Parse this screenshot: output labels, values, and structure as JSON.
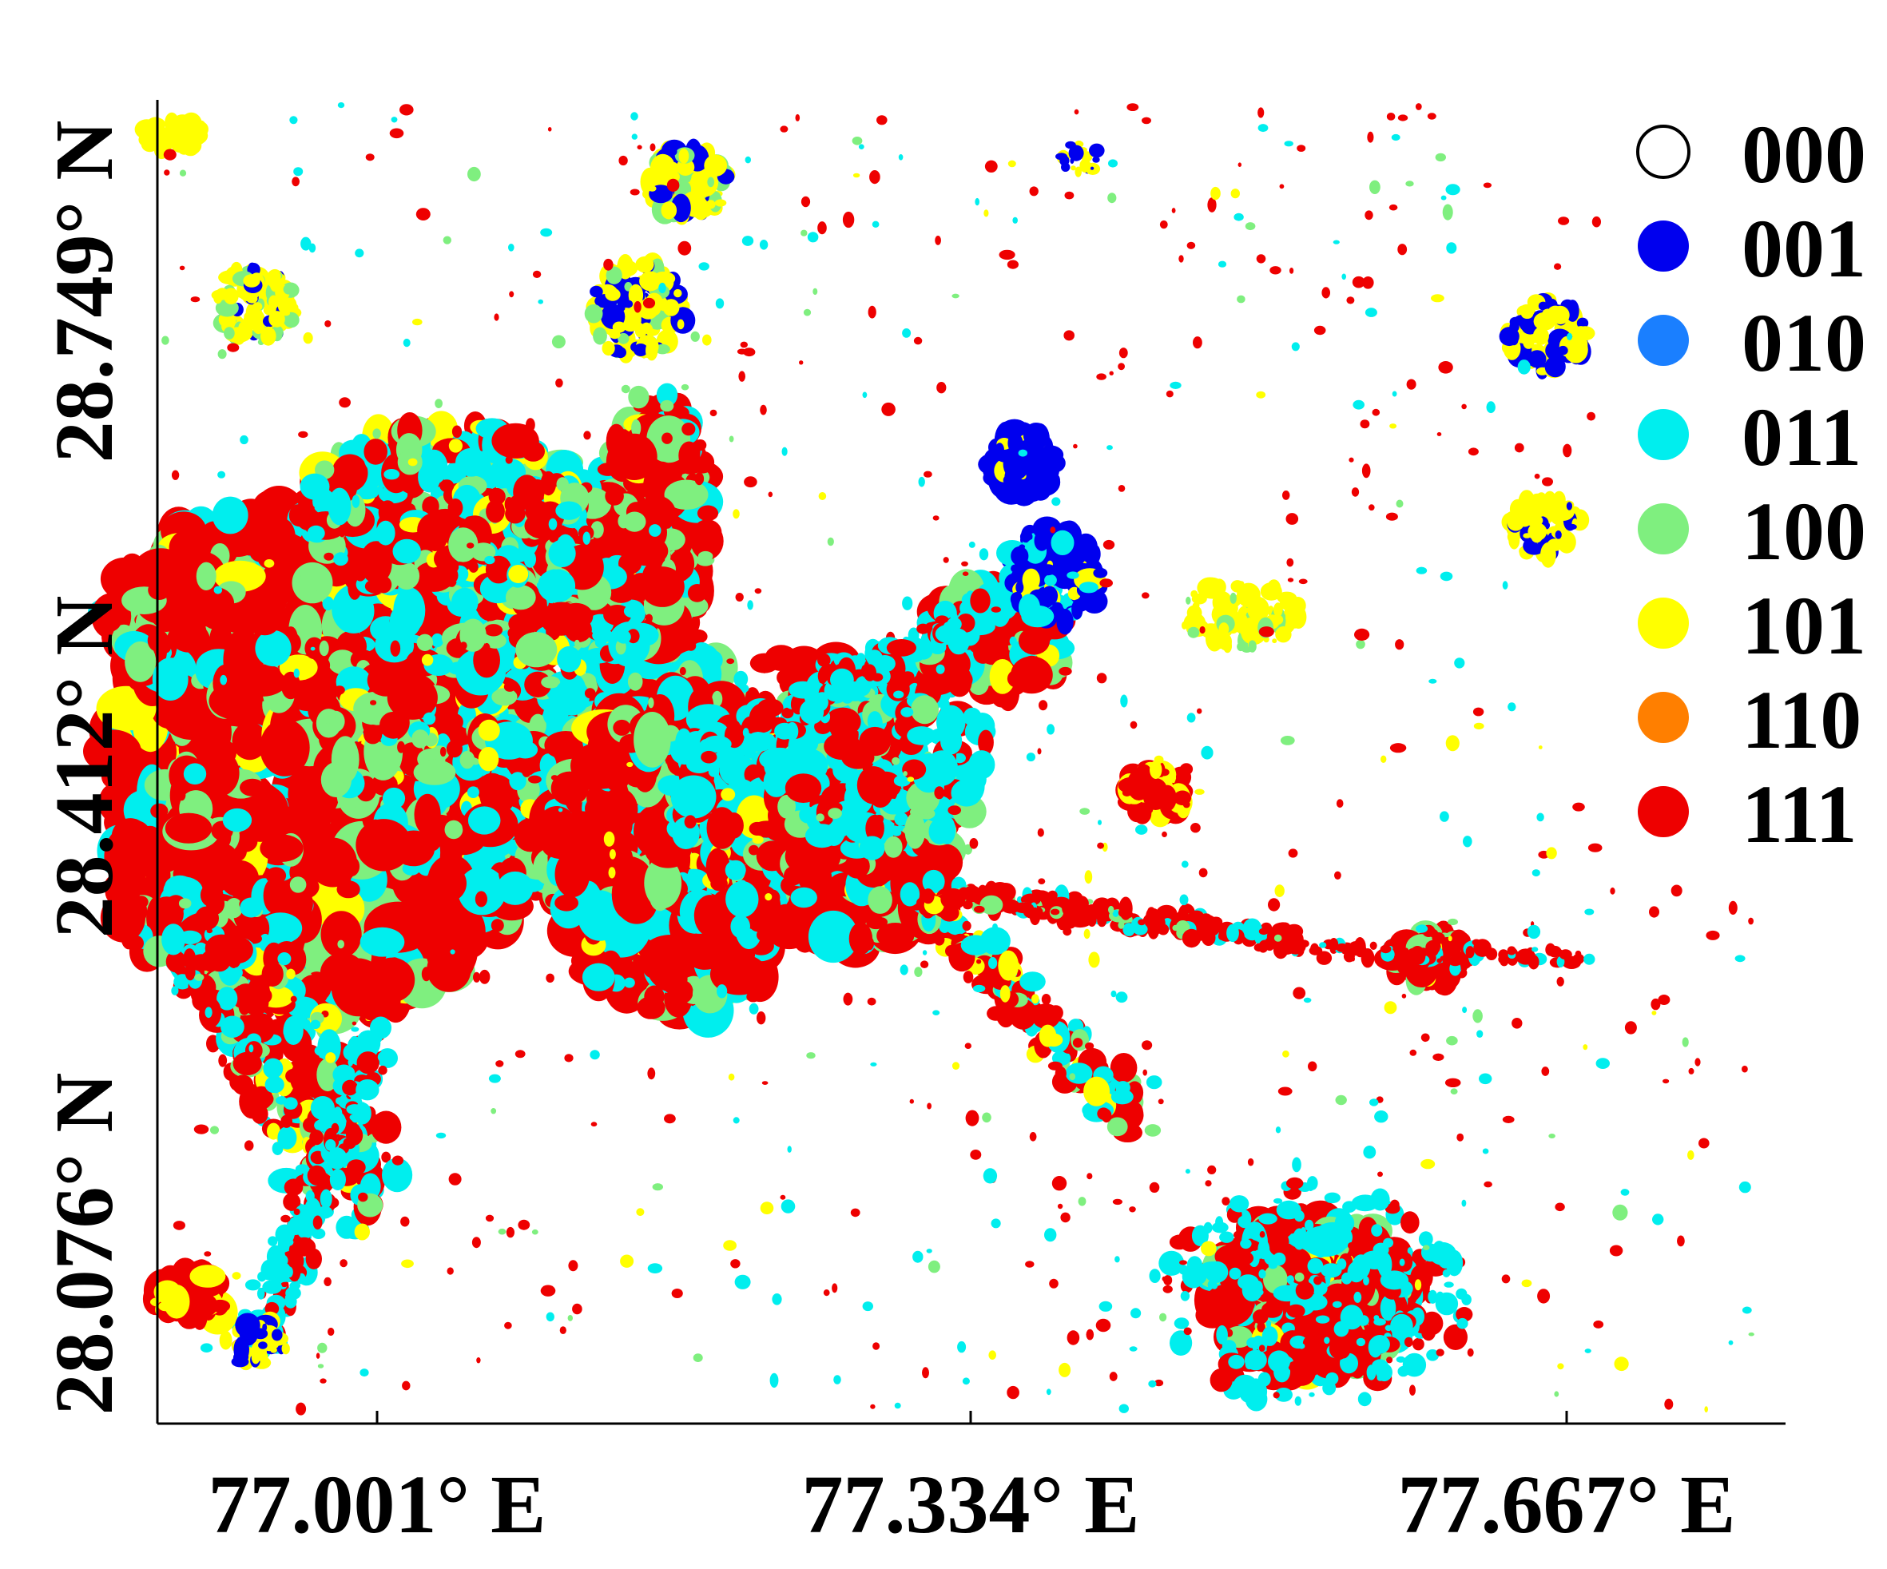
{
  "map": {
    "x_ticks": [
      {
        "label": "77.001° E"
      },
      {
        "label": "77.334° E"
      },
      {
        "label": "77.667° E"
      }
    ],
    "y_ticks": [
      {
        "label": "28.749° N"
      },
      {
        "label": "28.412° N"
      },
      {
        "label": "28.076° N"
      }
    ],
    "legend": [
      {
        "code": "000",
        "color": "#ffffff"
      },
      {
        "code": "001",
        "color": "#0000ee"
      },
      {
        "code": "010",
        "color": "#1a7fff"
      },
      {
        "code": "011",
        "color": "#00eeee"
      },
      {
        "code": "100",
        "color": "#7fef7f"
      },
      {
        "code": "101",
        "color": "#ffff00"
      },
      {
        "code": "110",
        "color": "#ff7f00"
      },
      {
        "code": "111",
        "color": "#ee0000"
      }
    ]
  }
}
